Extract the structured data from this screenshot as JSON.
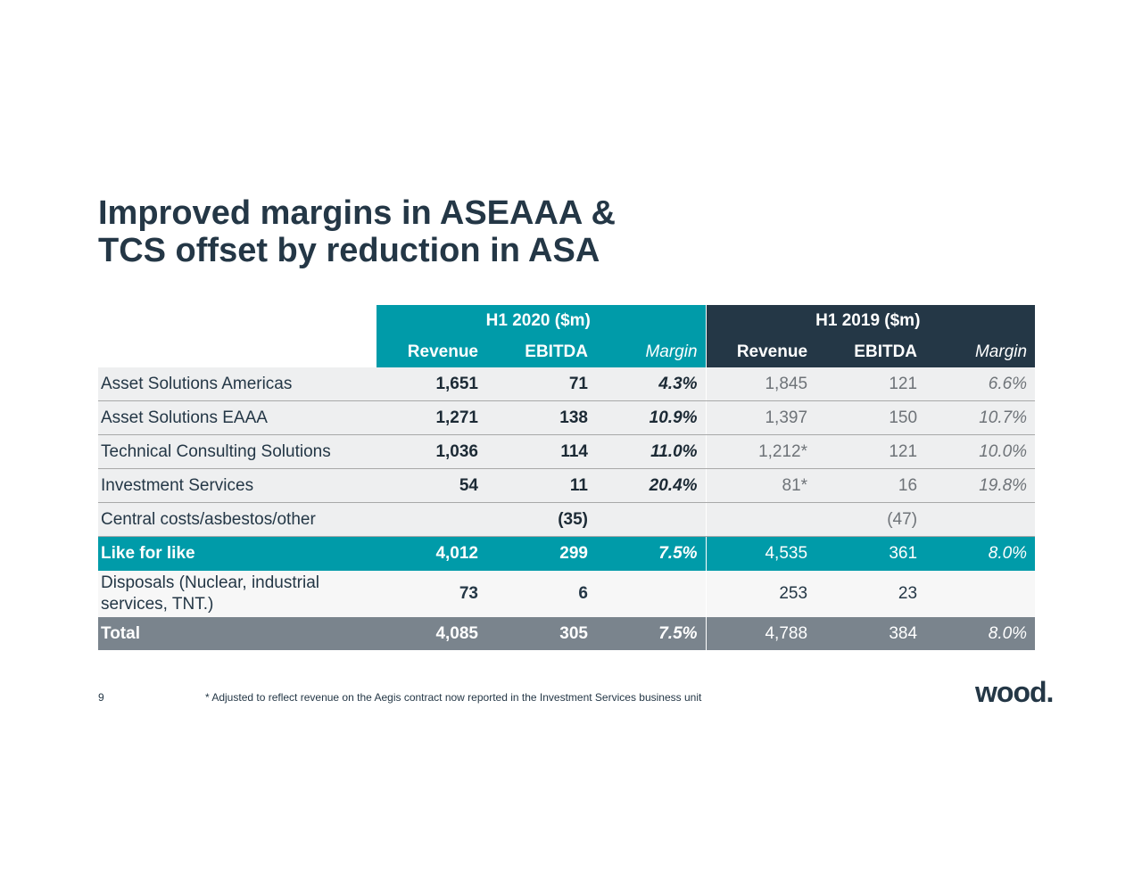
{
  "title_line1": "Improved margins in ASEAAA &",
  "title_line2": "TCS offset by reduction in ASA",
  "table": {
    "group_headers": [
      "H1 2020 ($m)",
      "H1 2019 ($m)"
    ],
    "columns": [
      "Revenue",
      "EBITDA",
      "Margin",
      "Revenue",
      "EBITDA",
      "Margin"
    ],
    "rows": [
      {
        "label": "Asset Solutions Americas",
        "values": [
          "1,651",
          "71",
          "4.3%",
          "1,845",
          "121",
          "6.6%"
        ]
      },
      {
        "label": "Asset Solutions EAAA",
        "values": [
          "1,271",
          "138",
          "10.9%",
          "1,397",
          "150",
          "10.7%"
        ]
      },
      {
        "label": "Technical Consulting Solutions",
        "values": [
          "1,036",
          "114",
          "11.0%",
          "1,212*",
          "121",
          "10.0%"
        ]
      },
      {
        "label": "Investment Services",
        "values": [
          "54",
          "11",
          "20.4%",
          "81*",
          "16",
          "19.8%"
        ]
      },
      {
        "label": "Central costs/asbestos/other",
        "values": [
          "",
          "(35)",
          "",
          "",
          "(47)",
          ""
        ]
      }
    ],
    "like_for_like": {
      "label": "Like for like",
      "values": [
        "4,012",
        "299",
        "7.5%",
        "4,535",
        "361",
        "8.0%"
      ]
    },
    "disposals": {
      "label": "Disposals (Nuclear, industrial services, TNT.)",
      "values": [
        "73",
        "6",
        "",
        "253",
        "23",
        ""
      ]
    },
    "total": {
      "label": "Total",
      "values": [
        "4,085",
        "305",
        "7.5%",
        "4,788",
        "384",
        "8.0%"
      ]
    }
  },
  "colors": {
    "teal": "#009ba9",
    "dark": "#243746",
    "total_gray": "#7a848d"
  },
  "page_number": "9",
  "footnote": "* Adjusted to reflect revenue on the Aegis contract now reported in the Investment Services business unit",
  "logo": "wood."
}
